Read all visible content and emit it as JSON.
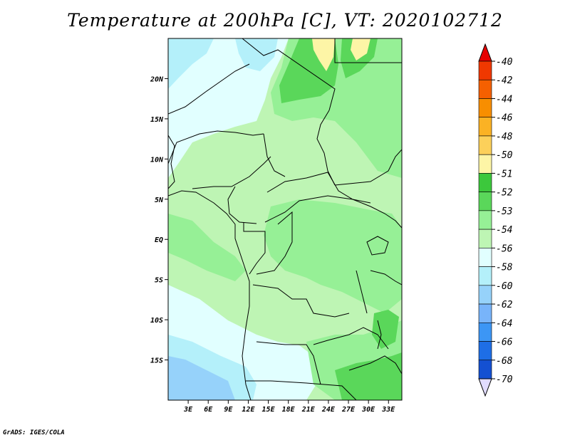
{
  "title": "Temperature at 200hPa [C], VT: 2020102712",
  "credit": "GrADS: IGES/COLA",
  "map": {
    "lon_range": [
      0,
      35
    ],
    "lat_range": [
      -20,
      25
    ],
    "lat_ticks": [
      {
        "value": 20,
        "label": "20N"
      },
      {
        "value": 15,
        "label": "15N"
      },
      {
        "value": 10,
        "label": "10N"
      },
      {
        "value": 5,
        "label": "5N"
      },
      {
        "value": 0,
        "label": "EQ"
      },
      {
        "value": -5,
        "label": "5S"
      },
      {
        "value": -10,
        "label": "10S"
      },
      {
        "value": -15,
        "label": "15S"
      }
    ],
    "lon_ticks": [
      {
        "value": 3,
        "label": "3E"
      },
      {
        "value": 6,
        "label": "6E"
      },
      {
        "value": 9,
        "label": "9E"
      },
      {
        "value": 12,
        "label": "12E"
      },
      {
        "value": 15,
        "label": "15E"
      },
      {
        "value": 18,
        "label": "18E"
      },
      {
        "value": 21,
        "label": "21E"
      },
      {
        "value": 24,
        "label": "24E"
      },
      {
        "value": 27,
        "label": "27E"
      },
      {
        "value": 30,
        "label": "30E"
      },
      {
        "value": 33,
        "label": "33E"
      }
    ]
  },
  "colorbar": {
    "levels": [
      {
        "label": "-40",
        "color": "#f03800"
      },
      {
        "label": "-42",
        "color": "#f56000"
      },
      {
        "label": "-44",
        "color": "#f88e00"
      },
      {
        "label": "-46",
        "color": "#fbb224"
      },
      {
        "label": "-48",
        "color": "#fcd05a"
      },
      {
        "label": "-50",
        "color": "#fdf5a6"
      },
      {
        "label": "-51",
        "color": "#3cc83c"
      },
      {
        "label": "-52",
        "color": "#5ad75a"
      },
      {
        "label": "-53",
        "color": "#96f096"
      },
      {
        "label": "-54",
        "color": "#bef5b4"
      },
      {
        "label": "-56",
        "color": "#e1ffff"
      },
      {
        "label": "-58",
        "color": "#b4f0fa"
      },
      {
        "label": "-60",
        "color": "#96d2fa"
      },
      {
        "label": "-62",
        "color": "#78b4fa"
      },
      {
        "label": "-64",
        "color": "#3c96f5"
      },
      {
        "label": "-66",
        "color": "#1e6ee6"
      },
      {
        "label": "-68",
        "color": "#1450d2"
      },
      {
        "label": "-70",
        "color": "#0a0a8c"
      }
    ],
    "top_arrow_color": "#e60000",
    "bottom_arrow_color": "#e1dcff"
  }
}
